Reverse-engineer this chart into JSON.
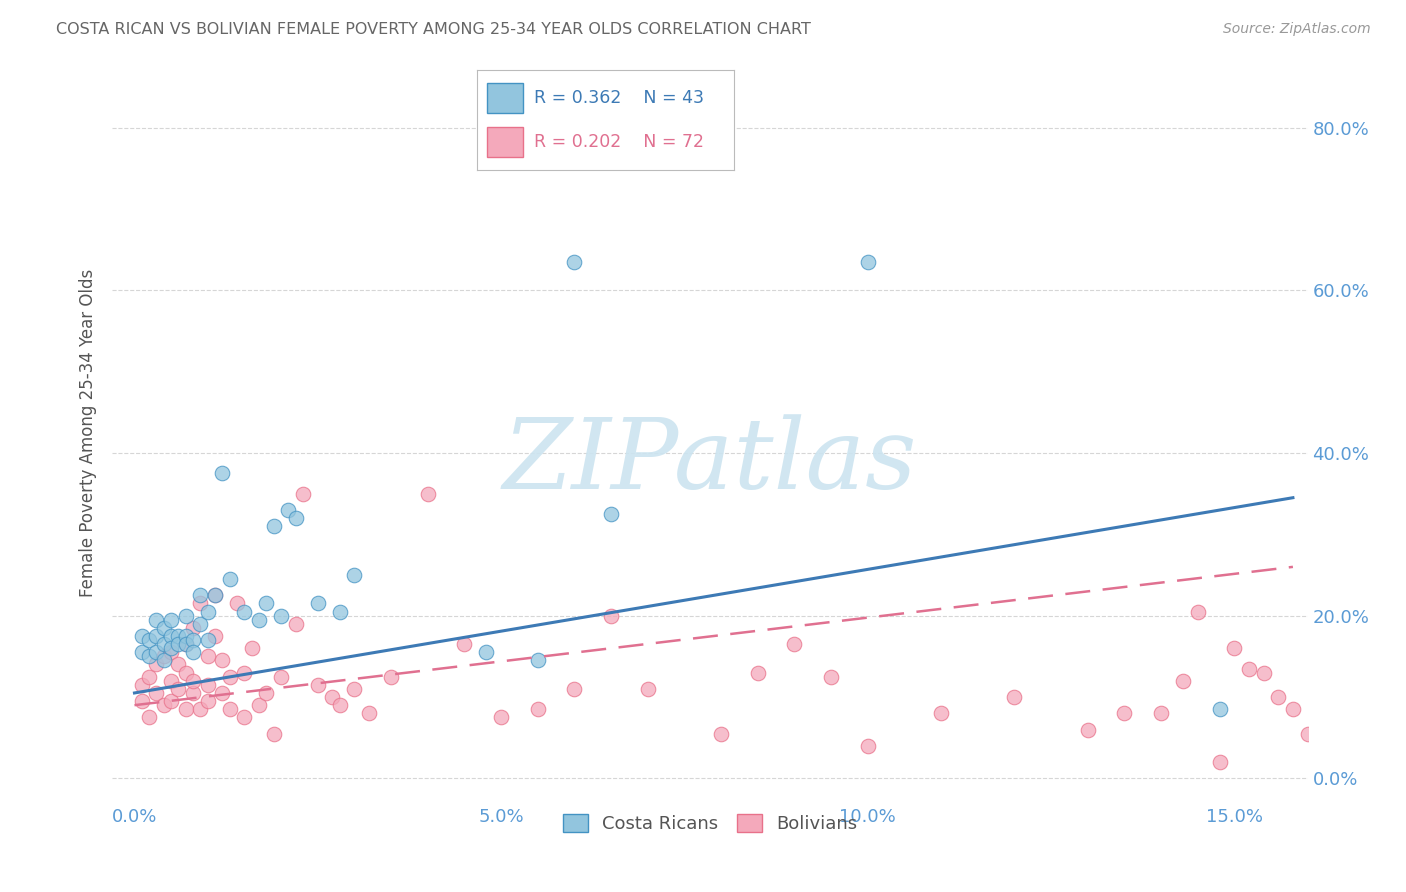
{
  "title": "COSTA RICAN VS BOLIVIAN FEMALE POVERTY AMONG 25-34 YEAR OLDS CORRELATION CHART",
  "source": "Source: ZipAtlas.com",
  "ylabel": "Female Poverty Among 25-34 Year Olds",
  "xlabel_tick_vals": [
    0.0,
    0.05,
    0.1,
    0.15
  ],
  "xlabel_ticks": [
    "0.0%",
    "5.0%",
    "10.0%",
    "15.0%"
  ],
  "ylabel_tick_vals": [
    0.0,
    0.2,
    0.4,
    0.6,
    0.8
  ],
  "ylabel_ticks": [
    "0.0%",
    "20.0%",
    "40.0%",
    "60.0%",
    "80.0%"
  ],
  "xmin": -0.003,
  "xmax": 0.16,
  "ymin": -0.03,
  "ymax": 0.88,
  "cr_R": 0.362,
  "cr_N": 43,
  "bo_R": 0.202,
  "bo_N": 72,
  "cr_color": "#92c5de",
  "bo_color": "#f4a9bb",
  "cr_edge_color": "#4393c3",
  "bo_edge_color": "#e8718a",
  "cr_line_color": "#3d7ab5",
  "bo_line_color": "#e07090",
  "legend_label_cr": "Costa Ricans",
  "legend_label_bo": "Bolivians",
  "watermark": "ZIPatlas",
  "background_color": "#ffffff",
  "grid_color": "#cccccc",
  "title_color": "#666666",
  "axis_tick_color": "#5b9bd5",
  "cr_scatter_x": [
    0.001,
    0.001,
    0.002,
    0.002,
    0.003,
    0.003,
    0.003,
    0.004,
    0.004,
    0.004,
    0.005,
    0.005,
    0.005,
    0.006,
    0.006,
    0.007,
    0.007,
    0.007,
    0.008,
    0.008,
    0.009,
    0.009,
    0.01,
    0.01,
    0.011,
    0.012,
    0.013,
    0.015,
    0.017,
    0.018,
    0.019,
    0.02,
    0.021,
    0.022,
    0.025,
    0.028,
    0.03,
    0.048,
    0.055,
    0.06,
    0.065,
    0.1,
    0.148
  ],
  "cr_scatter_y": [
    0.155,
    0.175,
    0.15,
    0.17,
    0.155,
    0.175,
    0.195,
    0.165,
    0.145,
    0.185,
    0.175,
    0.16,
    0.195,
    0.175,
    0.165,
    0.175,
    0.165,
    0.2,
    0.17,
    0.155,
    0.19,
    0.225,
    0.17,
    0.205,
    0.225,
    0.375,
    0.245,
    0.205,
    0.195,
    0.215,
    0.31,
    0.2,
    0.33,
    0.32,
    0.215,
    0.205,
    0.25,
    0.155,
    0.145,
    0.635,
    0.325,
    0.635,
    0.085
  ],
  "bo_scatter_x": [
    0.001,
    0.001,
    0.002,
    0.002,
    0.003,
    0.003,
    0.004,
    0.004,
    0.005,
    0.005,
    0.005,
    0.006,
    0.006,
    0.007,
    0.007,
    0.007,
    0.008,
    0.008,
    0.008,
    0.009,
    0.009,
    0.01,
    0.01,
    0.01,
    0.011,
    0.011,
    0.012,
    0.012,
    0.013,
    0.013,
    0.014,
    0.015,
    0.015,
    0.016,
    0.017,
    0.018,
    0.019,
    0.02,
    0.022,
    0.023,
    0.025,
    0.027,
    0.028,
    0.03,
    0.032,
    0.035,
    0.04,
    0.045,
    0.05,
    0.055,
    0.06,
    0.065,
    0.07,
    0.08,
    0.085,
    0.09,
    0.095,
    0.1,
    0.11,
    0.12,
    0.13,
    0.135,
    0.14,
    0.143,
    0.145,
    0.148,
    0.15,
    0.152,
    0.154,
    0.156,
    0.158,
    0.16
  ],
  "bo_scatter_y": [
    0.115,
    0.095,
    0.125,
    0.075,
    0.105,
    0.14,
    0.09,
    0.15,
    0.095,
    0.12,
    0.155,
    0.11,
    0.14,
    0.085,
    0.13,
    0.165,
    0.105,
    0.12,
    0.185,
    0.085,
    0.215,
    0.115,
    0.095,
    0.15,
    0.225,
    0.175,
    0.145,
    0.105,
    0.085,
    0.125,
    0.215,
    0.075,
    0.13,
    0.16,
    0.09,
    0.105,
    0.055,
    0.125,
    0.19,
    0.35,
    0.115,
    0.1,
    0.09,
    0.11,
    0.08,
    0.125,
    0.35,
    0.165,
    0.075,
    0.085,
    0.11,
    0.2,
    0.11,
    0.055,
    0.13,
    0.165,
    0.125,
    0.04,
    0.08,
    0.1,
    0.06,
    0.08,
    0.08,
    0.12,
    0.205,
    0.02,
    0.16,
    0.135,
    0.13,
    0.1,
    0.085,
    0.055
  ],
  "cr_line_x": [
    0.0,
    0.158
  ],
  "cr_line_y": [
    0.105,
    0.345
  ],
  "bo_line_x": [
    0.0,
    0.158
  ],
  "bo_line_y": [
    0.09,
    0.26
  ]
}
